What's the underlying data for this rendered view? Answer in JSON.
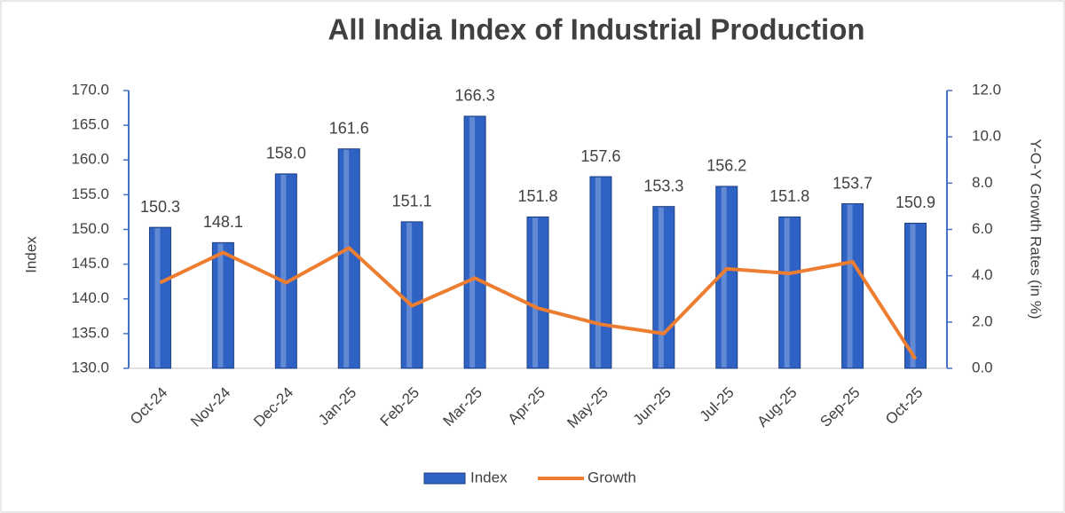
{
  "chart_data": {
    "type": "bar-line",
    "title": "All India Index of Industrial Production",
    "y_label": "Index",
    "y2_label": "Y-O-Y Growth Rates (in %)",
    "categories": [
      "Oct-24",
      "Nov-24",
      "Dec-24",
      "Jan-25",
      "Feb-25",
      "Mar-25",
      "Apr-25",
      "May-25",
      "Jun-25",
      "Jul-25",
      "Aug-25",
      "Sep-25",
      "Oct-25"
    ],
    "series": [
      {
        "name": "Index",
        "type": "bar",
        "color": "#2e62c4",
        "values": [
          150.3,
          148.1,
          158.0,
          161.6,
          151.1,
          166.3,
          151.8,
          157.6,
          153.3,
          156.2,
          151.8,
          153.7,
          150.9
        ],
        "value_labels": [
          "150.3",
          "148.1",
          "158.0",
          "161.6",
          "151.1",
          "166.3",
          "151.8",
          "157.6",
          "153.3",
          "156.2",
          "151.8",
          "153.7",
          "150.9"
        ]
      },
      {
        "name": "Growth",
        "type": "line",
        "axis": "y2",
        "color": "#ed7d31",
        "values": [
          3.7,
          5.0,
          3.7,
          5.2,
          2.7,
          3.9,
          2.6,
          1.9,
          1.5,
          4.3,
          4.1,
          4.6,
          0.4
        ]
      }
    ],
    "ylim": [
      130,
      170
    ],
    "yticks": [
      {
        "value": 130,
        "label": "130.0"
      },
      {
        "value": 135,
        "label": "135.0"
      },
      {
        "value": 140,
        "label": "140.0"
      },
      {
        "value": 145,
        "label": "145.0"
      },
      {
        "value": 150,
        "label": "150.0"
      },
      {
        "value": 155,
        "label": "155.0"
      },
      {
        "value": 160,
        "label": "160.0"
      },
      {
        "value": 165,
        "label": "165.0"
      },
      {
        "value": 170,
        "label": "170.0"
      }
    ],
    "y2lim": [
      0,
      12
    ],
    "y2ticks": [
      {
        "value": 0,
        "label": "0.0"
      },
      {
        "value": 2,
        "label": "2.0"
      },
      {
        "value": 4,
        "label": "4.0"
      },
      {
        "value": 6,
        "label": "6.0"
      },
      {
        "value": 8,
        "label": "8.0"
      },
      {
        "value": 10,
        "label": "10.0"
      },
      {
        "value": 12,
        "label": "12.0"
      }
    ],
    "legend": "bottom"
  }
}
